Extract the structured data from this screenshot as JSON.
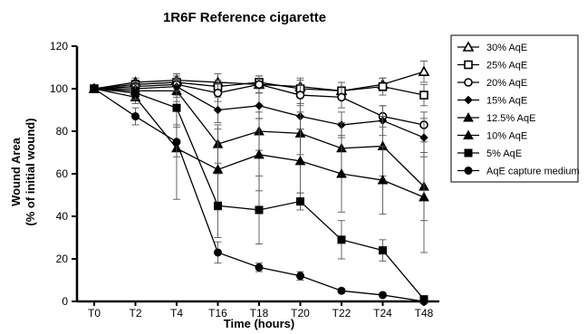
{
  "chart_data": {
    "type": "line",
    "title": "1R6F Reference cigarette",
    "xlabel": "Time (hours)",
    "ylabel": "Wound Area",
    "ylabel_sub": "(% of initial wound)",
    "categories": [
      "T0",
      "T2",
      "T4",
      "T16",
      "T18",
      "T20",
      "T22",
      "T24",
      "T48"
    ],
    "ylim": [
      0,
      120
    ],
    "yticks": [
      "0",
      "20",
      "40",
      "60",
      "80",
      "100",
      "120"
    ],
    "legend_position": "right",
    "grid": false,
    "series": [
      {
        "name": "30% AqE",
        "marker": "triangle-open",
        "values": [
          100,
          103,
          104,
          103,
          102,
          101,
          99,
          102,
          108
        ],
        "errors": [
          0,
          2,
          3,
          4,
          4,
          4,
          4,
          3,
          5
        ]
      },
      {
        "name": "25% AqE",
        "marker": "square-open",
        "values": [
          100,
          102,
          103,
          101,
          103,
          100,
          99,
          101,
          97
        ],
        "errors": [
          0,
          2,
          3,
          3,
          3,
          4,
          4,
          4,
          5
        ]
      },
      {
        "name": "20% AqE",
        "marker": "circle-open",
        "values": [
          100,
          101,
          102,
          98,
          102,
          97,
          96,
          87,
          83
        ],
        "errors": [
          0,
          2,
          3,
          4,
          4,
          5,
          5,
          5,
          6
        ]
      },
      {
        "name": "15% AqE",
        "marker": "diamond",
        "values": [
          100,
          100,
          101,
          90,
          92,
          87,
          83,
          85,
          77
        ],
        "errors": [
          0,
          2,
          4,
          6,
          6,
          6,
          6,
          7,
          9
        ]
      },
      {
        "name": "12.5% AqE",
        "marker": "triangle",
        "values": [
          100,
          99,
          99,
          74,
          80,
          79,
          72,
          73,
          54
        ],
        "errors": [
          0,
          3,
          5,
          9,
          9,
          10,
          12,
          14,
          16
        ]
      },
      {
        "name": "10% AqE",
        "marker": "triangle",
        "values": [
          100,
          96,
          72,
          62,
          69,
          66,
          60,
          57,
          49
        ],
        "errors": [
          0,
          3,
          24,
          19,
          17,
          15,
          18,
          16,
          26
        ]
      },
      {
        "name": "5% AqE",
        "marker": "square",
        "values": [
          100,
          98,
          91,
          45,
          43,
          47,
          29,
          24,
          1
        ],
        "errors": [
          0,
          3,
          8,
          15,
          16,
          4,
          9,
          5,
          1
        ]
      },
      {
        "name": "AqE capture medium",
        "marker": "circle",
        "values": [
          100,
          87,
          75,
          23,
          16,
          12,
          5,
          3,
          0
        ],
        "errors": [
          0,
          4,
          7,
          5,
          2,
          2,
          1,
          1,
          0
        ]
      }
    ]
  }
}
